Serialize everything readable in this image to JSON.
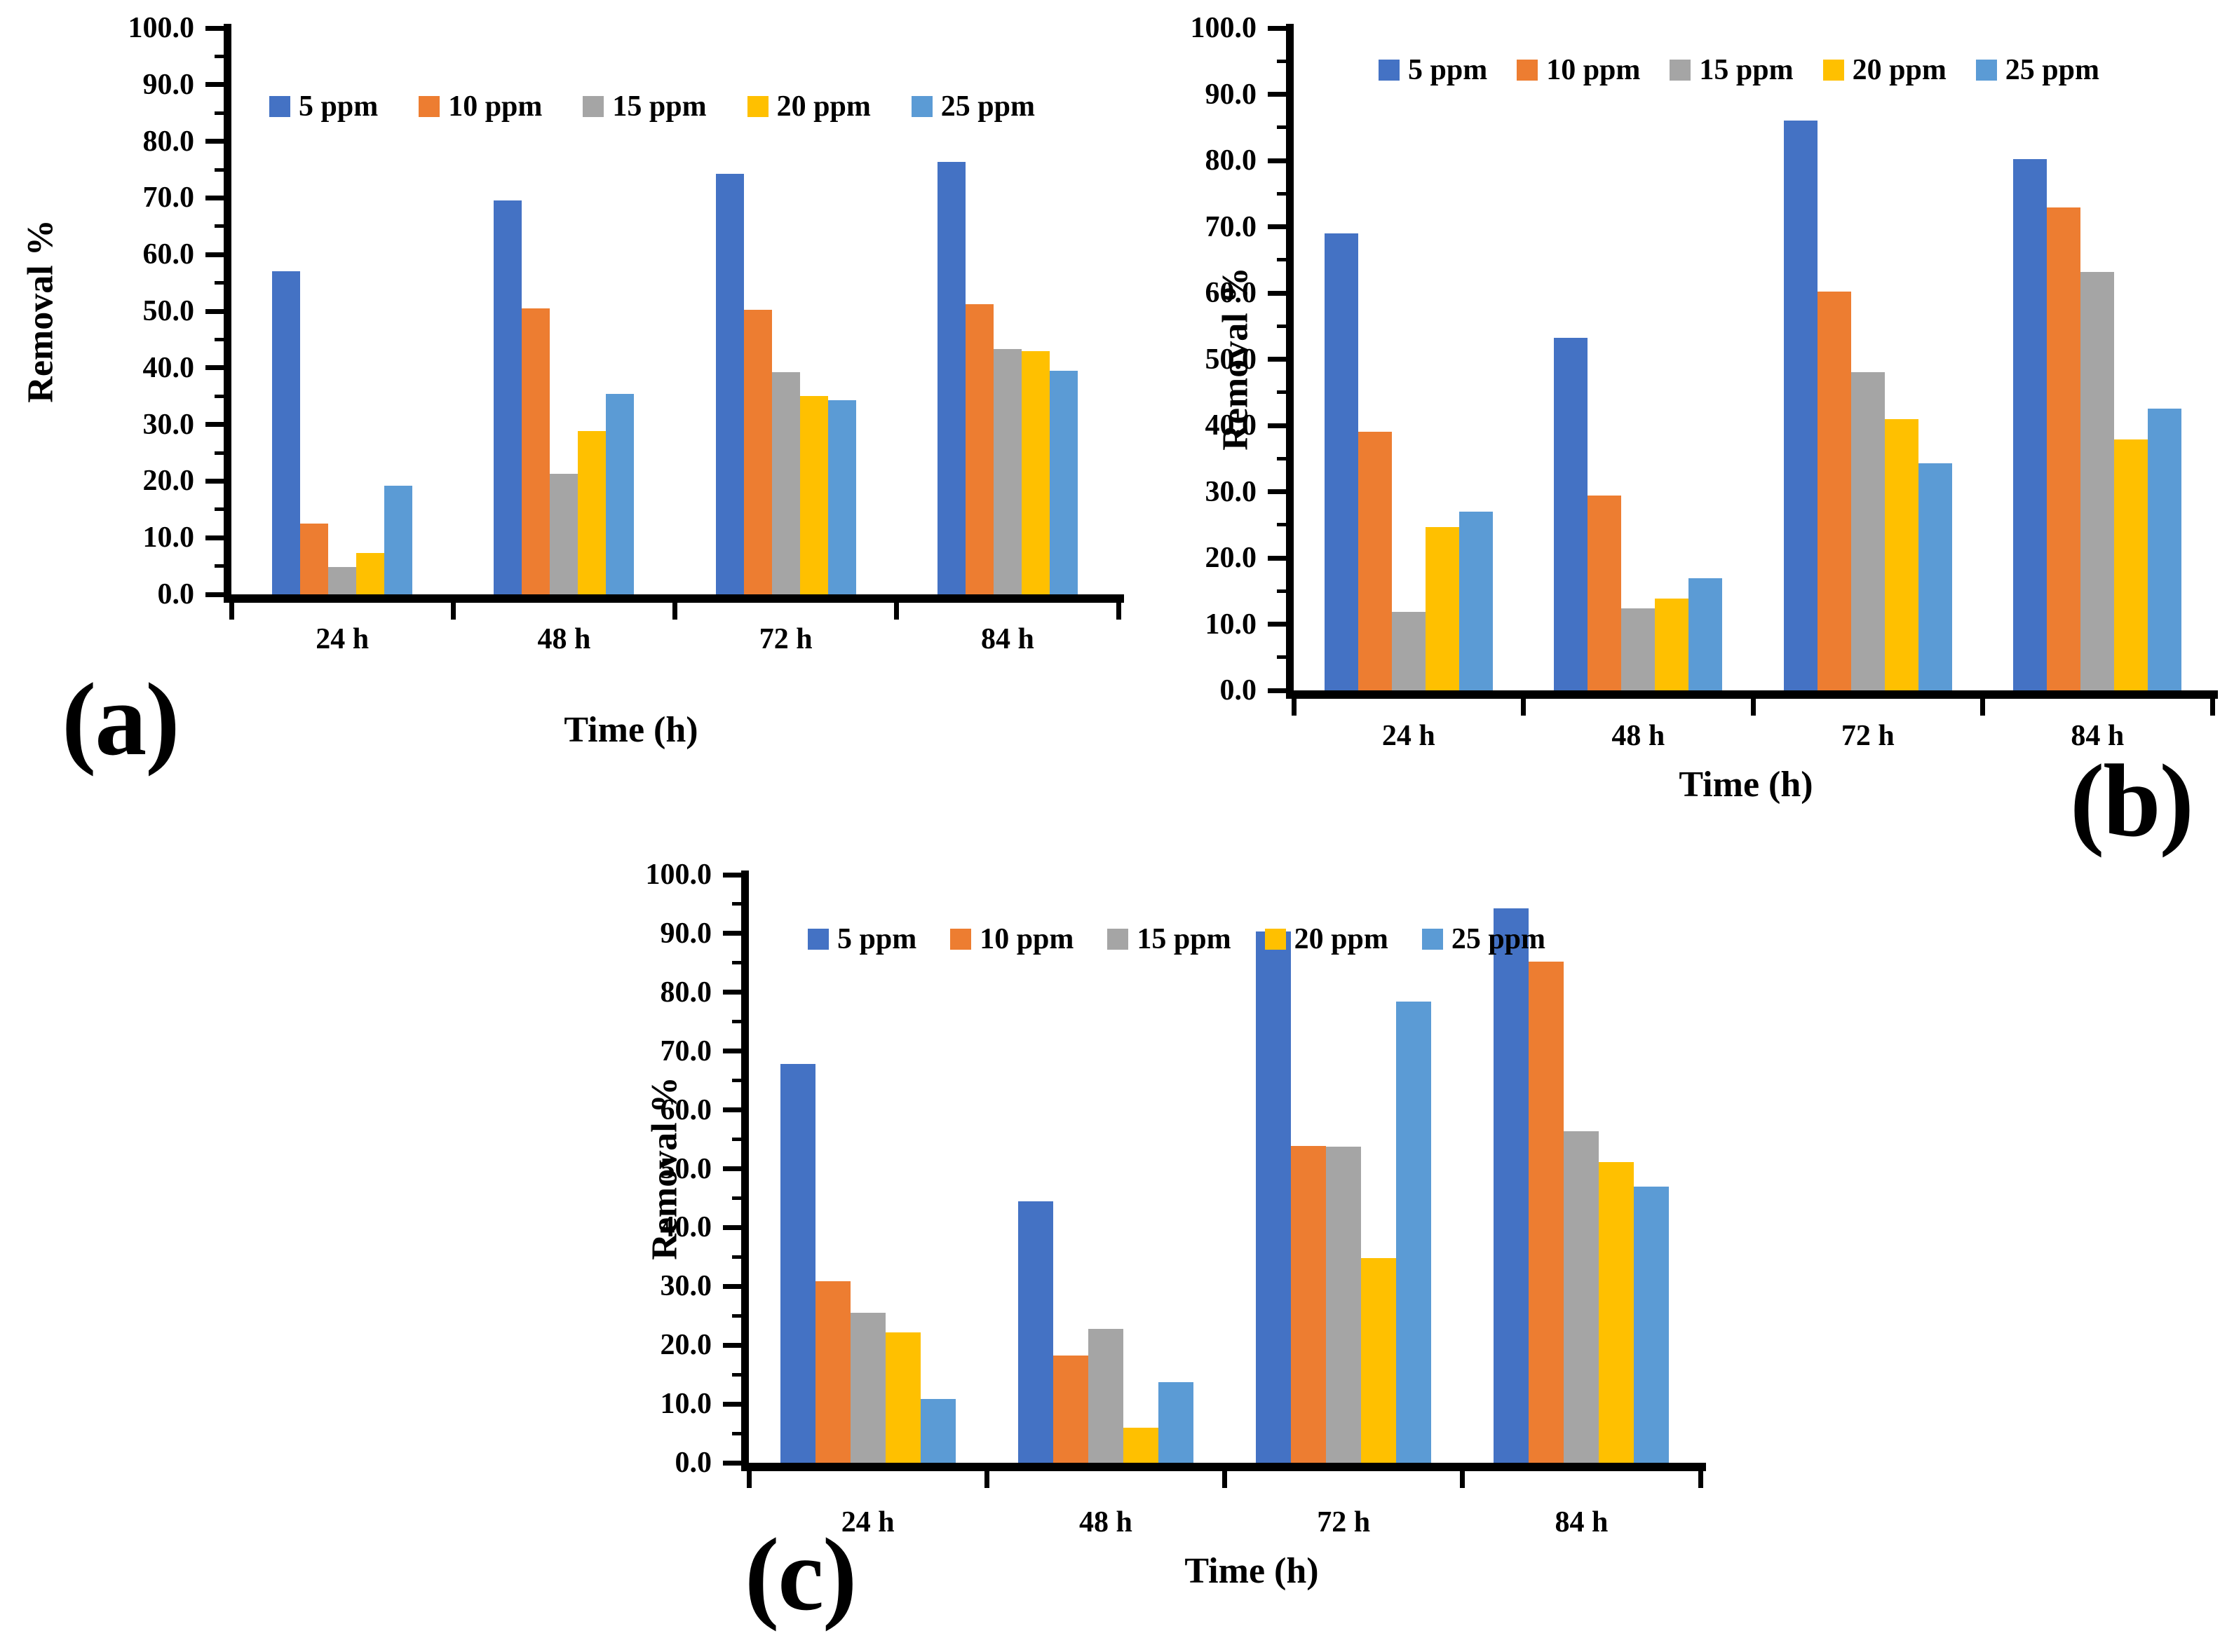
{
  "figure": {
    "background": "#ffffff",
    "panel_labels": [
      "(a)",
      "(b)",
      "(c)"
    ]
  },
  "chart_data": [
    {
      "panel_label": "(a)",
      "type": "bar",
      "title": "",
      "xlabel": "Time (h)",
      "ylabel": "Removal %",
      "ylim": [
        0,
        100
      ],
      "ytick_step": 10,
      "ytick_labels": [
        "0.0",
        "10.0",
        "20.0",
        "30.0",
        "40.0",
        "50.0",
        "60.0",
        "70.0",
        "80.0",
        "90.0",
        "100.0"
      ],
      "grid": false,
      "legend_position": "top-center",
      "categories": [
        "24 h",
        "48 h",
        "72 h",
        "84 h"
      ],
      "series": [
        {
          "name": "5 ppm",
          "color": "#4472C4",
          "values": [
            57.0,
            69.6,
            74.2,
            76.4
          ]
        },
        {
          "name": "10 ppm",
          "color": "#ED7D31",
          "values": [
            12.5,
            50.5,
            50.2,
            51.2
          ]
        },
        {
          "name": "15 ppm",
          "color": "#A5A5A5",
          "values": [
            4.8,
            21.3,
            39.2,
            43.3
          ]
        },
        {
          "name": "20 ppm",
          "color": "#FFC000",
          "values": [
            7.3,
            28.8,
            35.0,
            42.9
          ]
        },
        {
          "name": "25 ppm",
          "color": "#5B9BD5",
          "values": [
            19.2,
            35.4,
            34.3,
            39.5
          ]
        }
      ]
    },
    {
      "panel_label": "(b)",
      "type": "bar",
      "title": "",
      "xlabel": "Time (h)",
      "ylabel": "Removal %",
      "ylim": [
        0,
        100
      ],
      "ytick_step": 10,
      "ytick_labels": [
        "0.0",
        "10.0",
        "20.0",
        "30.0",
        "40.0",
        "50.0",
        "60.0",
        "70.0",
        "80.0",
        "90.0",
        "100.0"
      ],
      "grid": false,
      "legend_position": "top-center",
      "categories": [
        "24 h",
        "48 h",
        "72 h",
        "84 h"
      ],
      "series": [
        {
          "name": "5 ppm",
          "color": "#4472C4",
          "values": [
            69.0,
            53.2,
            86.0,
            80.2
          ]
        },
        {
          "name": "10 ppm",
          "color": "#ED7D31",
          "values": [
            39.0,
            29.4,
            60.2,
            72.9
          ]
        },
        {
          "name": "15 ppm",
          "color": "#A5A5A5",
          "values": [
            11.8,
            12.4,
            48.0,
            63.2
          ]
        },
        {
          "name": "20 ppm",
          "color": "#FFC000",
          "values": [
            24.7,
            13.9,
            41.0,
            37.9
          ]
        },
        {
          "name": "25 ppm",
          "color": "#5B9BD5",
          "values": [
            27.0,
            16.9,
            34.3,
            42.5
          ]
        }
      ]
    },
    {
      "panel_label": "(c)",
      "type": "bar",
      "title": "",
      "xlabel": "Time (h)",
      "ylabel": "Removal %",
      "ylim": [
        0,
        100
      ],
      "ytick_step": 10,
      "ytick_labels": [
        "0.0",
        "10.0",
        "20.0",
        "30.0",
        "40.0",
        "50.0",
        "60.0",
        "70.0",
        "80.0",
        "90.0",
        "100.0"
      ],
      "grid": false,
      "legend_position": "top-left",
      "categories": [
        "24 h",
        "48 h",
        "72 h",
        "84 h"
      ],
      "series": [
        {
          "name": "5 ppm",
          "color": "#4472C4",
          "values": [
            67.8,
            44.4,
            90.3,
            94.3
          ]
        },
        {
          "name": "10 ppm",
          "color": "#ED7D31",
          "values": [
            30.9,
            18.2,
            53.9,
            85.2
          ]
        },
        {
          "name": "15 ppm",
          "color": "#A5A5A5",
          "values": [
            25.5,
            22.8,
            53.8,
            56.4
          ]
        },
        {
          "name": "20 ppm",
          "color": "#FFC000",
          "values": [
            22.2,
            5.9,
            34.8,
            51.1
          ]
        },
        {
          "name": "25 ppm",
          "color": "#5B9BD5",
          "values": [
            10.9,
            13.7,
            78.4,
            47.0
          ]
        }
      ]
    }
  ]
}
